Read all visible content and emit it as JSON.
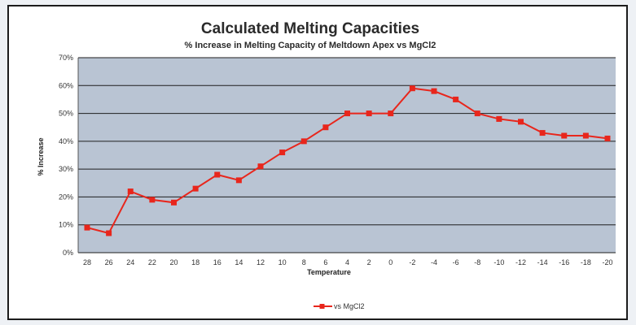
{
  "chart_data": {
    "type": "line",
    "title": "Calculated Melting Capacities",
    "subtitle": "% Increase in Melting Capacity of Meltdown Apex vs MgCl2",
    "xlabel": "Temperature",
    "ylabel": "% Increase",
    "categories": [
      "28",
      "26",
      "24",
      "22",
      "20",
      "18",
      "16",
      "14",
      "12",
      "10",
      "8",
      "6",
      "4",
      "2",
      "0",
      "-2",
      "-4",
      "-6",
      "-8",
      "-10",
      "-12",
      "-14",
      "-16",
      "-18",
      "-20"
    ],
    "ylim": [
      0,
      70
    ],
    "yticks": [
      "0%",
      "10%",
      "20%",
      "30%",
      "40%",
      "50%",
      "60%",
      "70%"
    ],
    "grid": true,
    "legend_position": "bottom",
    "series": [
      {
        "name": "vs MgCl2",
        "color": "#e8261c",
        "values": [
          9,
          7,
          22,
          19,
          18,
          23,
          28,
          26,
          31,
          36,
          40,
          45,
          50,
          50,
          50,
          59,
          58,
          55,
          50,
          48,
          47,
          43,
          42,
          42,
          41
        ]
      }
    ],
    "plot_background": "#b9c4d3",
    "gridline_color": "#1f1f1f"
  }
}
